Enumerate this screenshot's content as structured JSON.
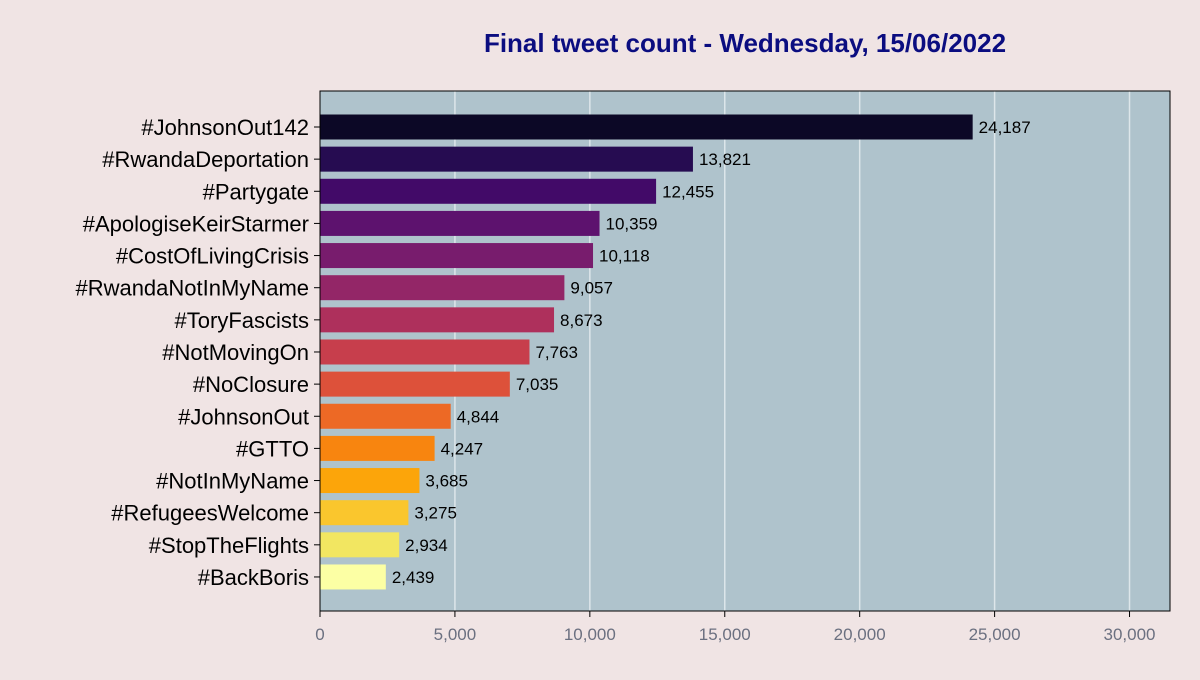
{
  "chart_data": {
    "type": "bar",
    "orientation": "horizontal",
    "title": "Final tweet count - Wednesday, 15/06/2022",
    "xlabel": "",
    "ylabel": "",
    "categories": [
      "#JohnsonOut142",
      "#RwandaDeportation",
      "#Partygate",
      "#ApologiseKeirStarmer",
      "#CostOfLivingCrisis",
      "#RwandaNotInMyName",
      "#ToryFascists",
      "#NotMovingOn",
      "#NoClosure",
      "#JohnsonOut",
      "#GTTO",
      "#NotInMyName",
      "#RefugeesWelcome",
      "#StopTheFlights",
      "#BackBoris"
    ],
    "values": [
      24187,
      13821,
      12455,
      10359,
      10118,
      9057,
      8673,
      7763,
      7035,
      4844,
      4247,
      3685,
      3275,
      2934,
      2439
    ],
    "value_labels": [
      "24,187",
      "13,821",
      "12,455",
      "10,359",
      "10,118",
      "9,057",
      "8,673",
      "7,763",
      "7,035",
      "4,844",
      "4,247",
      "3,685",
      "3,275",
      "2,934",
      "2,439"
    ],
    "bar_colors": [
      "#0c0826",
      "#260c51",
      "#420a68",
      "#5d126e",
      "#781c6d",
      "#932667",
      "#ae305c",
      "#c73e4c",
      "#dd513a",
      "#ed6925",
      "#f8850f",
      "#fca50a",
      "#fac62d",
      "#f2e661",
      "#fcffa4"
    ],
    "xlim": [
      0,
      31500
    ],
    "xticks": [
      0,
      5000,
      10000,
      15000,
      20000,
      25000,
      30000
    ],
    "xtick_labels": [
      "0",
      "5,000",
      "10,000",
      "15,000",
      "20,000",
      "25,000",
      "30,000"
    ],
    "grid": "vertical",
    "colors": {
      "figure_background": "#f0e4e4",
      "plot_background": "#afc3cc",
      "title": "#0b0d80",
      "tick_label": "#6b7080",
      "grid": "#dde6ea"
    }
  }
}
